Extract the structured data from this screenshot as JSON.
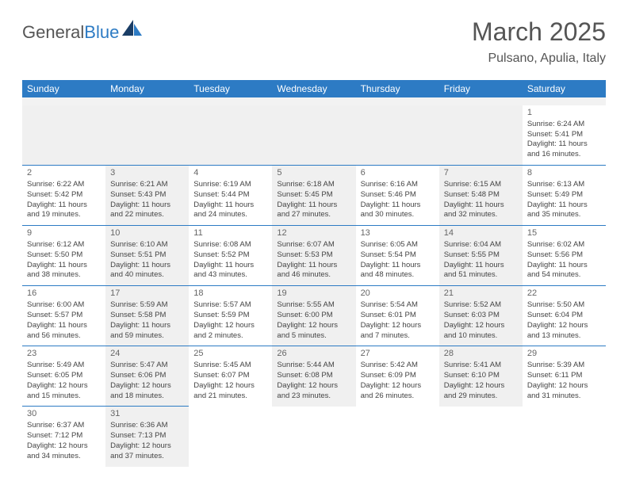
{
  "logo": {
    "text1": "General",
    "text2": "Blue"
  },
  "header": {
    "month": "March 2025",
    "location": "Pulsano, Apulia, Italy"
  },
  "dayNames": [
    "Sunday",
    "Monday",
    "Tuesday",
    "Wednesday",
    "Thursday",
    "Friday",
    "Saturday"
  ],
  "colors": {
    "accent": "#2d7bc4",
    "shaded": "#f0f0f0",
    "text": "#444"
  },
  "weeks": [
    [
      {
        "num": "",
        "sunrise": "",
        "sunset": "",
        "daylight": "",
        "shaded": true,
        "empty": true
      },
      {
        "num": "",
        "sunrise": "",
        "sunset": "",
        "daylight": "",
        "shaded": true,
        "empty": true
      },
      {
        "num": "",
        "sunrise": "",
        "sunset": "",
        "daylight": "",
        "shaded": true,
        "empty": true
      },
      {
        "num": "",
        "sunrise": "",
        "sunset": "",
        "daylight": "",
        "shaded": true,
        "empty": true
      },
      {
        "num": "",
        "sunrise": "",
        "sunset": "",
        "daylight": "",
        "shaded": true,
        "empty": true
      },
      {
        "num": "",
        "sunrise": "",
        "sunset": "",
        "daylight": "",
        "shaded": true,
        "empty": true
      },
      {
        "num": "1",
        "sunrise": "Sunrise: 6:24 AM",
        "sunset": "Sunset: 5:41 PM",
        "daylight": "Daylight: 11 hours and 16 minutes.",
        "shaded": false
      }
    ],
    [
      {
        "num": "2",
        "sunrise": "Sunrise: 6:22 AM",
        "sunset": "Sunset: 5:42 PM",
        "daylight": "Daylight: 11 hours and 19 minutes.",
        "shaded": false
      },
      {
        "num": "3",
        "sunrise": "Sunrise: 6:21 AM",
        "sunset": "Sunset: 5:43 PM",
        "daylight": "Daylight: 11 hours and 22 minutes.",
        "shaded": true
      },
      {
        "num": "4",
        "sunrise": "Sunrise: 6:19 AM",
        "sunset": "Sunset: 5:44 PM",
        "daylight": "Daylight: 11 hours and 24 minutes.",
        "shaded": false
      },
      {
        "num": "5",
        "sunrise": "Sunrise: 6:18 AM",
        "sunset": "Sunset: 5:45 PM",
        "daylight": "Daylight: 11 hours and 27 minutes.",
        "shaded": true
      },
      {
        "num": "6",
        "sunrise": "Sunrise: 6:16 AM",
        "sunset": "Sunset: 5:46 PM",
        "daylight": "Daylight: 11 hours and 30 minutes.",
        "shaded": false
      },
      {
        "num": "7",
        "sunrise": "Sunrise: 6:15 AM",
        "sunset": "Sunset: 5:48 PM",
        "daylight": "Daylight: 11 hours and 32 minutes.",
        "shaded": true
      },
      {
        "num": "8",
        "sunrise": "Sunrise: 6:13 AM",
        "sunset": "Sunset: 5:49 PM",
        "daylight": "Daylight: 11 hours and 35 minutes.",
        "shaded": false
      }
    ],
    [
      {
        "num": "9",
        "sunrise": "Sunrise: 6:12 AM",
        "sunset": "Sunset: 5:50 PM",
        "daylight": "Daylight: 11 hours and 38 minutes.",
        "shaded": false
      },
      {
        "num": "10",
        "sunrise": "Sunrise: 6:10 AM",
        "sunset": "Sunset: 5:51 PM",
        "daylight": "Daylight: 11 hours and 40 minutes.",
        "shaded": true
      },
      {
        "num": "11",
        "sunrise": "Sunrise: 6:08 AM",
        "sunset": "Sunset: 5:52 PM",
        "daylight": "Daylight: 11 hours and 43 minutes.",
        "shaded": false
      },
      {
        "num": "12",
        "sunrise": "Sunrise: 6:07 AM",
        "sunset": "Sunset: 5:53 PM",
        "daylight": "Daylight: 11 hours and 46 minutes.",
        "shaded": true
      },
      {
        "num": "13",
        "sunrise": "Sunrise: 6:05 AM",
        "sunset": "Sunset: 5:54 PM",
        "daylight": "Daylight: 11 hours and 48 minutes.",
        "shaded": false
      },
      {
        "num": "14",
        "sunrise": "Sunrise: 6:04 AM",
        "sunset": "Sunset: 5:55 PM",
        "daylight": "Daylight: 11 hours and 51 minutes.",
        "shaded": true
      },
      {
        "num": "15",
        "sunrise": "Sunrise: 6:02 AM",
        "sunset": "Sunset: 5:56 PM",
        "daylight": "Daylight: 11 hours and 54 minutes.",
        "shaded": false
      }
    ],
    [
      {
        "num": "16",
        "sunrise": "Sunrise: 6:00 AM",
        "sunset": "Sunset: 5:57 PM",
        "daylight": "Daylight: 11 hours and 56 minutes.",
        "shaded": false
      },
      {
        "num": "17",
        "sunrise": "Sunrise: 5:59 AM",
        "sunset": "Sunset: 5:58 PM",
        "daylight": "Daylight: 11 hours and 59 minutes.",
        "shaded": true
      },
      {
        "num": "18",
        "sunrise": "Sunrise: 5:57 AM",
        "sunset": "Sunset: 5:59 PM",
        "daylight": "Daylight: 12 hours and 2 minutes.",
        "shaded": false
      },
      {
        "num": "19",
        "sunrise": "Sunrise: 5:55 AM",
        "sunset": "Sunset: 6:00 PM",
        "daylight": "Daylight: 12 hours and 5 minutes.",
        "shaded": true
      },
      {
        "num": "20",
        "sunrise": "Sunrise: 5:54 AM",
        "sunset": "Sunset: 6:01 PM",
        "daylight": "Daylight: 12 hours and 7 minutes.",
        "shaded": false
      },
      {
        "num": "21",
        "sunrise": "Sunrise: 5:52 AM",
        "sunset": "Sunset: 6:03 PM",
        "daylight": "Daylight: 12 hours and 10 minutes.",
        "shaded": true
      },
      {
        "num": "22",
        "sunrise": "Sunrise: 5:50 AM",
        "sunset": "Sunset: 6:04 PM",
        "daylight": "Daylight: 12 hours and 13 minutes.",
        "shaded": false
      }
    ],
    [
      {
        "num": "23",
        "sunrise": "Sunrise: 5:49 AM",
        "sunset": "Sunset: 6:05 PM",
        "daylight": "Daylight: 12 hours and 15 minutes.",
        "shaded": false
      },
      {
        "num": "24",
        "sunrise": "Sunrise: 5:47 AM",
        "sunset": "Sunset: 6:06 PM",
        "daylight": "Daylight: 12 hours and 18 minutes.",
        "shaded": true
      },
      {
        "num": "25",
        "sunrise": "Sunrise: 5:45 AM",
        "sunset": "Sunset: 6:07 PM",
        "daylight": "Daylight: 12 hours and 21 minutes.",
        "shaded": false
      },
      {
        "num": "26",
        "sunrise": "Sunrise: 5:44 AM",
        "sunset": "Sunset: 6:08 PM",
        "daylight": "Daylight: 12 hours and 23 minutes.",
        "shaded": true
      },
      {
        "num": "27",
        "sunrise": "Sunrise: 5:42 AM",
        "sunset": "Sunset: 6:09 PM",
        "daylight": "Daylight: 12 hours and 26 minutes.",
        "shaded": false
      },
      {
        "num": "28",
        "sunrise": "Sunrise: 5:41 AM",
        "sunset": "Sunset: 6:10 PM",
        "daylight": "Daylight: 12 hours and 29 minutes.",
        "shaded": true
      },
      {
        "num": "29",
        "sunrise": "Sunrise: 5:39 AM",
        "sunset": "Sunset: 6:11 PM",
        "daylight": "Daylight: 12 hours and 31 minutes.",
        "shaded": false
      }
    ],
    [
      {
        "num": "30",
        "sunrise": "Sunrise: 6:37 AM",
        "sunset": "Sunset: 7:12 PM",
        "daylight": "Daylight: 12 hours and 34 minutes.",
        "shaded": false
      },
      {
        "num": "31",
        "sunrise": "Sunrise: 6:36 AM",
        "sunset": "Sunset: 7:13 PM",
        "daylight": "Daylight: 12 hours and 37 minutes.",
        "shaded": true
      },
      {
        "num": "",
        "sunrise": "",
        "sunset": "",
        "daylight": "",
        "shaded": false,
        "empty": true,
        "noborder": true
      },
      {
        "num": "",
        "sunrise": "",
        "sunset": "",
        "daylight": "",
        "shaded": false,
        "empty": true,
        "noborder": true
      },
      {
        "num": "",
        "sunrise": "",
        "sunset": "",
        "daylight": "",
        "shaded": false,
        "empty": true,
        "noborder": true
      },
      {
        "num": "",
        "sunrise": "",
        "sunset": "",
        "daylight": "",
        "shaded": false,
        "empty": true,
        "noborder": true
      },
      {
        "num": "",
        "sunrise": "",
        "sunset": "",
        "daylight": "",
        "shaded": false,
        "empty": true,
        "noborder": true
      }
    ]
  ]
}
